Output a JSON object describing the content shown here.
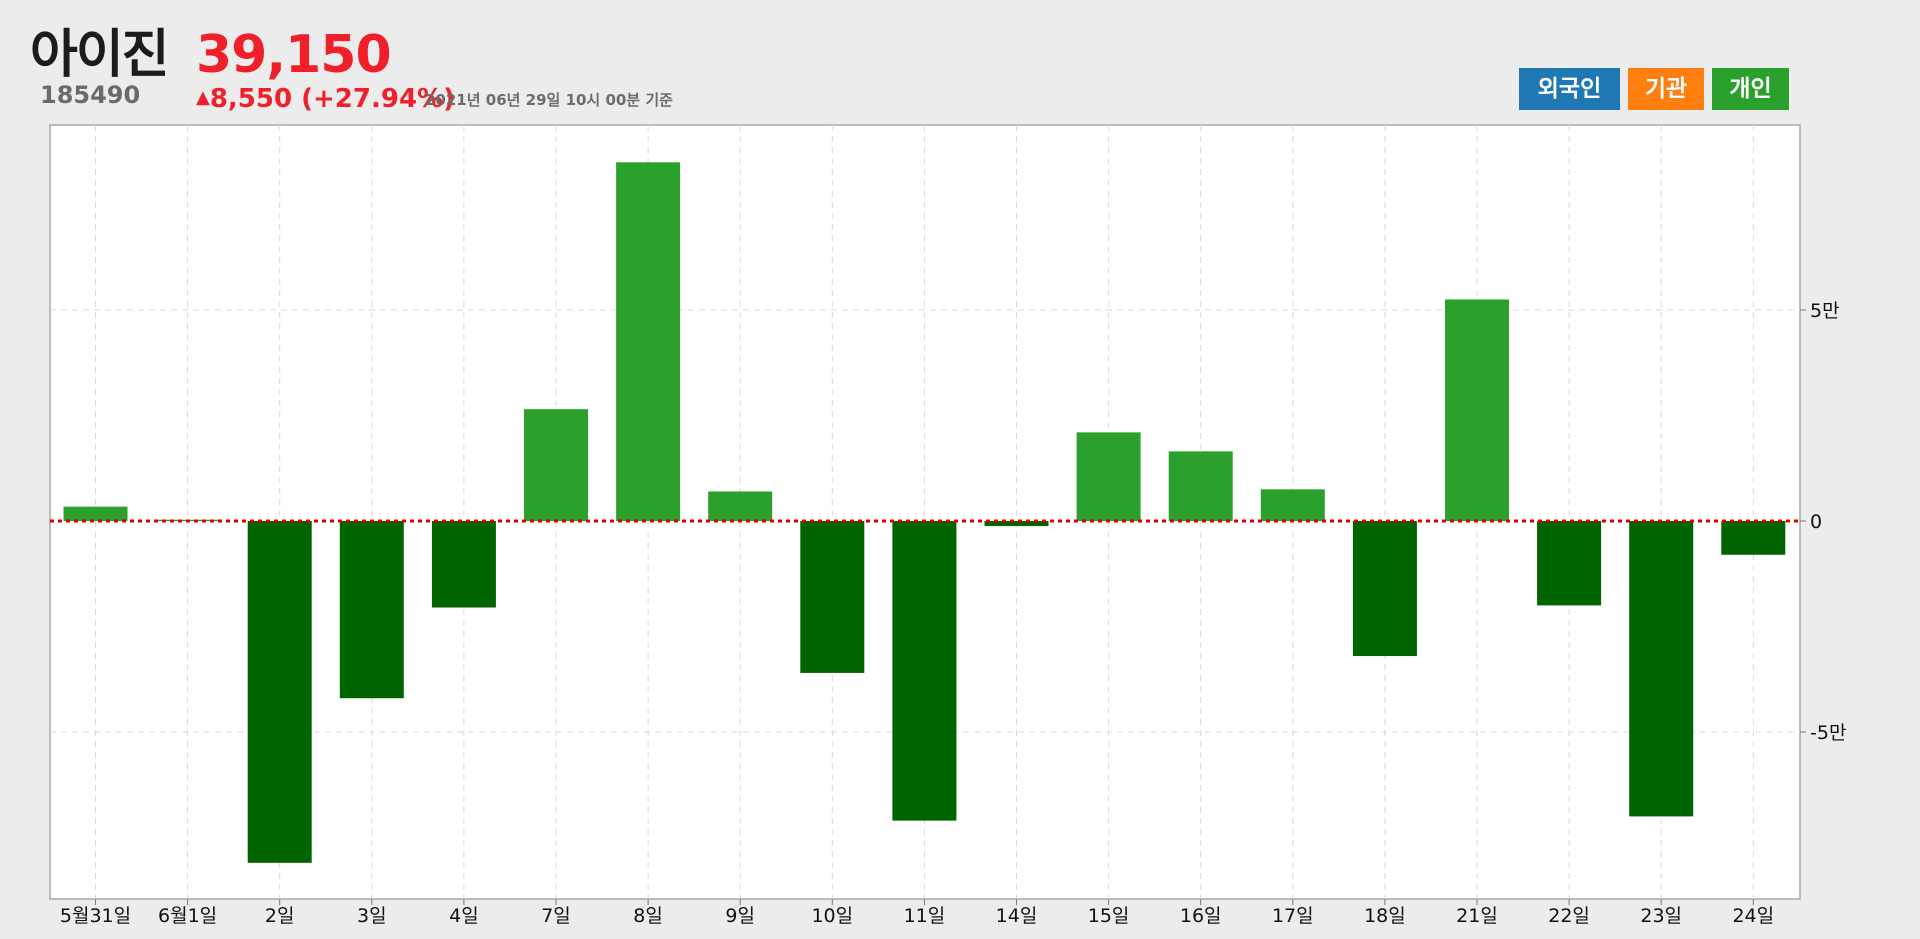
{
  "header": {
    "stock_name": "아이진",
    "price": "39,150",
    "code": "185490",
    "change_arrow": "▲",
    "change": "8,550 (+27.94%)",
    "timestamp": "2021년 06년 29일 10시 00분 기준"
  },
  "tags": {
    "foreign": "외국인",
    "institution": "기관",
    "individual": "개인"
  },
  "colors": {
    "foreign": "#1f77b4",
    "institution": "#ff7f0e",
    "individual": "#2ca02c",
    "positive_bar": "#2ca02c",
    "negative_bar": "#006400",
    "zero_line": "#e00000",
    "price_up": "#f0202a"
  },
  "chart_data": {
    "type": "bar",
    "series": [
      {
        "values": [
          3400,
          300,
          -81000,
          -42000,
          -20500,
          26500,
          85000,
          7000,
          -36000,
          -71000,
          -1200,
          21000,
          16500,
          7500,
          -32000,
          52500,
          -20000,
          -70000,
          -8000
        ]
      }
    ],
    "categories": [
      "5월31일",
      "6월1일",
      "2일",
      "3일",
      "4일",
      "7일",
      "8일",
      "9일",
      "10일",
      "11일",
      "14일",
      "15일",
      "16일",
      "17일",
      "18일",
      "21일",
      "22일",
      "23일",
      "24일"
    ],
    "y_ticks": [
      {
        "value": 50000,
        "label": "5만"
      },
      {
        "value": 0,
        "label": "0"
      },
      {
        "value": -50000,
        "label": "-5만"
      }
    ],
    "ylim": [
      -89000,
      93000
    ],
    "grid": true,
    "zero_line": "dotted red"
  }
}
